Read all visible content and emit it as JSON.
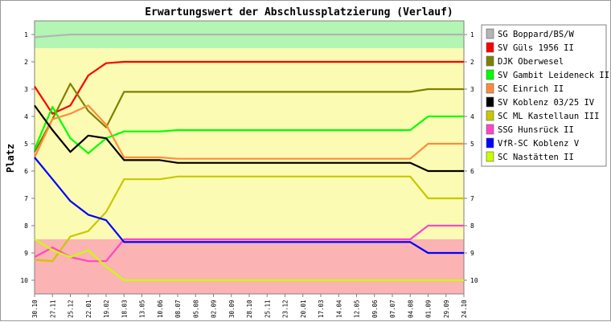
{
  "chart_data": {
    "type": "line",
    "title": "Erwartungswert der Abschlussplatzierung (Verlauf)",
    "xlabel": "",
    "ylabel": "Platz",
    "ylim": [
      0.5,
      10.5
    ],
    "y_inverted": true,
    "yticks": [
      1,
      2,
      3,
      4,
      5,
      6,
      7,
      8,
      9,
      10
    ],
    "grid": false,
    "legend_position": "right",
    "zones": [
      {
        "from": 0.5,
        "to": 1.5,
        "color": "#b3f5b3"
      },
      {
        "from": 1.5,
        "to": 8.5,
        "color": "#fbfbb3"
      },
      {
        "from": 8.5,
        "to": 10.5,
        "color": "#fbb3b3"
      }
    ],
    "x": [
      "30.10",
      "27.11",
      "25.12",
      "22.01",
      "19.02",
      "18.03",
      "13.05",
      "10.06",
      "08.07",
      "05.08",
      "02.09",
      "30.09",
      "28.10",
      "25.11",
      "23.12",
      "20.01",
      "17.03",
      "14.04",
      "12.05",
      "09.06",
      "07.07",
      "04.08",
      "01.09",
      "29.09",
      "24.10"
    ],
    "series": [
      {
        "name": "SG Boppard/BS/W",
        "color": "#b4b4b4",
        "values": [
          1.1,
          1.05,
          1,
          1,
          1,
          1,
          1,
          1,
          1,
          1,
          1,
          1,
          1,
          1,
          1,
          1,
          1,
          1,
          1,
          1,
          1,
          1,
          1,
          1,
          1
        ]
      },
      {
        "name": "SV Güls 1956 II",
        "color": "#ff0000",
        "values": [
          2.9,
          3.9,
          3.6,
          2.5,
          2.05,
          2,
          2,
          2,
          2,
          2,
          2,
          2,
          2,
          2,
          2,
          2,
          2,
          2,
          2,
          2,
          2,
          2,
          2,
          2,
          2
        ]
      },
      {
        "name": "DJK Oberwesel",
        "color": "#808000",
        "values": [
          5.3,
          4.1,
          2.8,
          3.8,
          4.4,
          3.1,
          3.1,
          3.1,
          3.1,
          3.1,
          3.1,
          3.1,
          3.1,
          3.1,
          3.1,
          3.1,
          3.1,
          3.1,
          3.1,
          3.1,
          3.1,
          3.1,
          3,
          3,
          3
        ]
      },
      {
        "name": "SV Gambit Leideneck II",
        "color": "#00ff00",
        "values": [
          5.2,
          3.65,
          4.8,
          5.35,
          4.8,
          4.55,
          4.55,
          4.55,
          4.5,
          4.5,
          4.5,
          4.5,
          4.5,
          4.5,
          4.5,
          4.5,
          4.5,
          4.5,
          4.5,
          4.5,
          4.5,
          4.5,
          4,
          4,
          4
        ]
      },
      {
        "name": "SC Einrich II",
        "color": "#ff8c3c",
        "values": [
          5.5,
          4.1,
          3.9,
          3.6,
          4.3,
          5.5,
          5.5,
          5.5,
          5.55,
          5.55,
          5.55,
          5.55,
          5.55,
          5.55,
          5.55,
          5.55,
          5.55,
          5.55,
          5.55,
          5.55,
          5.55,
          5.55,
          5,
          5,
          5
        ]
      },
      {
        "name": "SV Koblenz 03/25 IV",
        "color": "#000000",
        "values": [
          3.6,
          4.5,
          5.3,
          4.7,
          4.8,
          5.6,
          5.6,
          5.6,
          5.7,
          5.7,
          5.7,
          5.7,
          5.7,
          5.7,
          5.7,
          5.7,
          5.7,
          5.7,
          5.7,
          5.7,
          5.7,
          5.7,
          6,
          6,
          6
        ]
      },
      {
        "name": "SC ML Kastellaun III",
        "color": "#c8c800",
        "values": [
          9.25,
          9.3,
          8.4,
          8.2,
          7.5,
          6.3,
          6.3,
          6.3,
          6.2,
          6.2,
          6.2,
          6.2,
          6.2,
          6.2,
          6.2,
          6.2,
          6.2,
          6.2,
          6.2,
          6.2,
          6.2,
          6.2,
          7,
          7,
          7
        ]
      },
      {
        "name": "SSG Hunsrück II",
        "color": "#ff46c8",
        "values": [
          9.15,
          8.8,
          9.15,
          9.3,
          9.3,
          8.5,
          8.5,
          8.5,
          8.5,
          8.5,
          8.5,
          8.5,
          8.5,
          8.5,
          8.5,
          8.5,
          8.5,
          8.5,
          8.5,
          8.5,
          8.5,
          8.5,
          8,
          8,
          8
        ]
      },
      {
        "name": "VfR-SC Koblenz V",
        "color": "#0000ff",
        "values": [
          5.5,
          6.3,
          7.1,
          7.6,
          7.8,
          8.6,
          8.6,
          8.6,
          8.6,
          8.6,
          8.6,
          8.6,
          8.6,
          8.6,
          8.6,
          8.6,
          8.6,
          8.6,
          8.6,
          8.6,
          8.6,
          8.6,
          9,
          9,
          9
        ]
      },
      {
        "name": "SC Nastätten II",
        "color": "#c8ff00",
        "values": [
          8.5,
          8.9,
          9.15,
          8.9,
          9.5,
          10,
          10,
          10,
          10,
          10,
          10,
          10,
          10,
          10,
          10,
          10,
          10,
          10,
          10,
          10,
          10,
          10,
          10,
          10,
          10
        ]
      }
    ]
  }
}
